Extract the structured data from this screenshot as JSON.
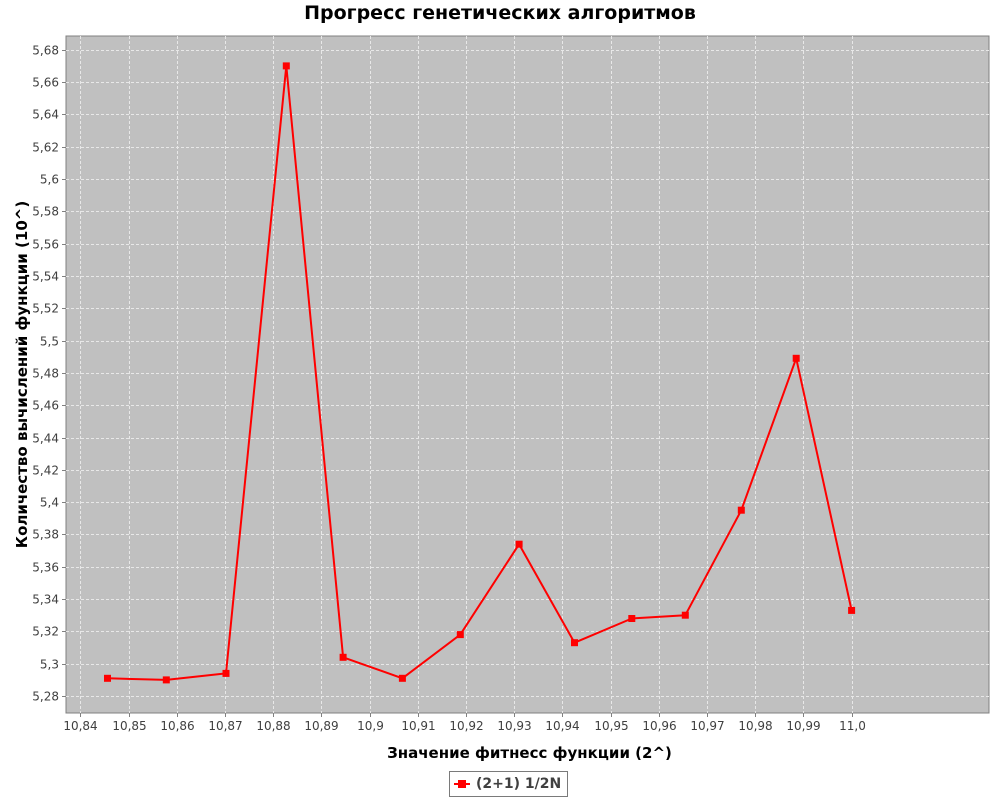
{
  "chart_data": {
    "type": "line",
    "title": "Прогресс генетических алгоритмов",
    "xlabel": "Значение фитнесс функции (2^)",
    "ylabel": "Количество вычислений функции (10^)",
    "xlim": [
      10.837,
      11.0285
    ],
    "ylim": [
      5.2695,
      5.6885
    ],
    "x_ticks": [
      10.84,
      10.85,
      10.86,
      10.87,
      10.88,
      10.89,
      10.9,
      10.91,
      10.92,
      10.93,
      10.94,
      10.95,
      10.96,
      10.97,
      10.98,
      10.99,
      11.0
    ],
    "x_tick_labels": [
      "10,84",
      "10,85",
      "10,86",
      "10,87",
      "10,88",
      "10,89",
      "10,9",
      "10,91",
      "10,92",
      "10,93",
      "10,94",
      "10,95",
      "10,96",
      "10,97",
      "10,98",
      "10,99",
      "11,0"
    ],
    "y_ticks": [
      5.28,
      5.3,
      5.32,
      5.34,
      5.36,
      5.38,
      5.4,
      5.42,
      5.44,
      5.46,
      5.48,
      5.5,
      5.52,
      5.54,
      5.56,
      5.58,
      5.6,
      5.62,
      5.64,
      5.66,
      5.68
    ],
    "y_tick_labels": [
      "5,28",
      "5,3",
      "5,32",
      "5,34",
      "5,36",
      "5,38",
      "5,4",
      "5,42",
      "5,44",
      "5,46",
      "5,48",
      "5,5",
      "5,52",
      "5,54",
      "5,56",
      "5,58",
      "5,6",
      "5,62",
      "5,64",
      "5,66",
      "5,68"
    ],
    "grid": true,
    "legend_position": "bottom-center",
    "series": [
      {
        "name": "(2+1) 1/2N",
        "color": "#ff0000",
        "marker": "square",
        "x": [
          10.8456,
          10.8578,
          10.8702,
          10.8827,
          10.8945,
          10.9068,
          10.9188,
          10.931,
          10.9425,
          10.9544,
          10.9655,
          10.9771,
          10.9885,
          11.0
        ],
        "y": [
          5.291,
          5.29,
          5.294,
          5.67,
          5.304,
          5.291,
          5.318,
          5.374,
          5.313,
          5.328,
          5.33,
          5.395,
          5.489,
          5.333
        ]
      }
    ]
  },
  "colors": {
    "plot_background": "#c0c0c0",
    "grid": "#e8e8e8",
    "series": "#ff0000"
  }
}
